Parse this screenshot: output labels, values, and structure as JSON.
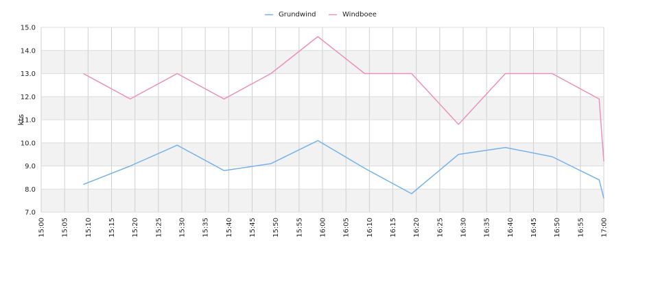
{
  "chart_data": {
    "type": "line",
    "title": "",
    "xlabel": "",
    "ylabel": "kts",
    "ylim": [
      7.0,
      15.0
    ],
    "yticks": [
      "7.0",
      "8.0",
      "9.0",
      "10.0",
      "11.0",
      "12.0",
      "13.0",
      "14.0",
      "15.0"
    ],
    "xticks": [
      "15:00",
      "15:05",
      "15:10",
      "15:15",
      "15:20",
      "15:25",
      "15:30",
      "15:35",
      "15:40",
      "15:45",
      "15:50",
      "15:55",
      "16:00",
      "16:05",
      "16:10",
      "16:15",
      "16:20",
      "16:25",
      "16:30",
      "16:35",
      "16:40",
      "16:45",
      "16:50",
      "16:55",
      "17:00"
    ],
    "grid": true,
    "legend_position": "top",
    "series": [
      {
        "name": "Grundwind",
        "color": "#74b1ec",
        "x": [
          "15:09",
          "15:19",
          "15:29",
          "15:39",
          "15:49",
          "15:59",
          "16:09",
          "16:19",
          "16:29",
          "16:39",
          "16:49",
          "16:59",
          "17:00"
        ],
        "values": [
          8.2,
          9.0,
          9.9,
          8.8,
          9.1,
          10.1,
          8.9,
          7.8,
          9.5,
          9.8,
          9.4,
          8.4,
          7.6
        ]
      },
      {
        "name": "Windboee",
        "color": "#ec8fbd",
        "x": [
          "15:09",
          "15:19",
          "15:29",
          "15:39",
          "15:49",
          "15:59",
          "16:09",
          "16:19",
          "16:29",
          "16:39",
          "16:49",
          "16:59",
          "17:00"
        ],
        "values": [
          13.0,
          11.9,
          13.0,
          11.9,
          13.0,
          14.6,
          13.0,
          13.0,
          10.8,
          13.0,
          13.0,
          11.9,
          9.2
        ]
      }
    ]
  }
}
